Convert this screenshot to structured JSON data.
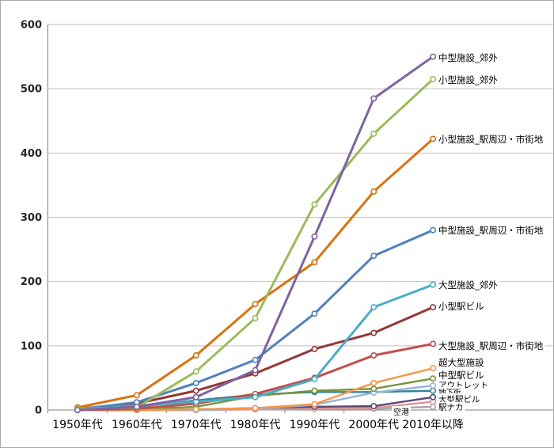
{
  "chart_data": {
    "type": "line",
    "title": "",
    "xlabel": "",
    "ylabel": "",
    "categories": [
      "1950年代",
      "1960年代",
      "1970年代",
      "1980年代",
      "1990年代",
      "2000年代",
      "2010年以降"
    ],
    "ylim": [
      0,
      600
    ],
    "y_step": 100,
    "y_ticks": [
      "0",
      "100",
      "200",
      "300",
      "400",
      "500",
      "600"
    ],
    "grid": true,
    "legend_position": "line-end-labels",
    "series": [
      {
        "name": "中型施設_郊外",
        "color": "#7F63A1",
        "values": [
          0,
          5,
          20,
          62,
          270,
          485,
          550
        ],
        "label_y": 72,
        "label_size": 11.5
      },
      {
        "name": "小型施設_郊外",
        "color": "#9BBB59",
        "values": [
          2,
          4,
          60,
          143,
          320,
          430,
          515
        ],
        "label_y": 100,
        "label_size": 11.5
      },
      {
        "name": "小型施設_駅周辺・市街地",
        "color": "#D9720F",
        "values": [
          4,
          23,
          85,
          165,
          230,
          340,
          422
        ],
        "label_y": 175,
        "label_size": 11.5
      },
      {
        "name": "中型施設_駅周辺・市街地",
        "color": "#4F81BD",
        "values": [
          1,
          12,
          42,
          78,
          150,
          240,
          280
        ],
        "label_y": 290,
        "label_size": 11.5
      },
      {
        "name": "大型施設_郊外",
        "color": "#4BACC6",
        "values": [
          0,
          7,
          13,
          20,
          48,
          160,
          195
        ],
        "label_y": 359,
        "label_size": 11.5
      },
      {
        "name": "小型駅ビル",
        "color": "#943735",
        "values": [
          2,
          10,
          30,
          57,
          95,
          120,
          160
        ],
        "label_y": 386,
        "label_size": 11.5
      },
      {
        "name": "大型施設_駅周辺・市街地",
        "color": "#C0504D",
        "values": [
          0,
          2,
          10,
          25,
          50,
          85,
          103
        ],
        "label_y": 436,
        "label_size": 11.5
      },
      {
        "name": "超大型施設",
        "color": "#F79646",
        "values": [
          0,
          0,
          1,
          3,
          9,
          42,
          65
        ],
        "label_y": 457,
        "label_size": 11.5
      },
      {
        "name": "中型駅ビル",
        "color": "#77933C",
        "values": [
          0,
          1,
          5,
          22,
          30,
          33,
          49
        ],
        "label_y": 473,
        "label_size": 11.5
      },
      {
        "name": "アウトレット",
        "color": "#95B3D7",
        "values": [
          0,
          0,
          0,
          2,
          8,
          27,
          38
        ],
        "label_y": 485,
        "label_size": 10.5
      },
      {
        "name": "地下街",
        "color": "#31859C",
        "values": [
          1,
          5,
          15,
          24,
          28,
          28,
          30
        ],
        "label_y": 494,
        "label_size": 9.5
      },
      {
        "name": "大型駅ビル",
        "color": "#5C4776",
        "values": [
          0,
          0,
          1,
          3,
          5,
          6,
          20
        ],
        "label_y": 503,
        "label_size": 10.5
      },
      {
        "name": "駅ナカ",
        "color": "#D99694",
        "values": [
          0,
          0,
          0,
          1,
          2,
          3,
          13
        ],
        "label_y": 513,
        "label_size": 10.5
      },
      {
        "name": "空港",
        "color": "#A6A6A6",
        "values": [
          0,
          0,
          0,
          1,
          2,
          2,
          5
        ],
        "label_y": 519,
        "label_size": 10,
        "label_on_axis": true,
        "label_x": 506
      }
    ]
  },
  "colors": {
    "background": "#FFFFFF",
    "figure_border": "#A6A6A6",
    "gridline": "#BFBFBF",
    "axis_line": "#808080",
    "y_tick_label": "#262626",
    "x_tick_label": "#000000",
    "series_label_text": "#000000"
  }
}
